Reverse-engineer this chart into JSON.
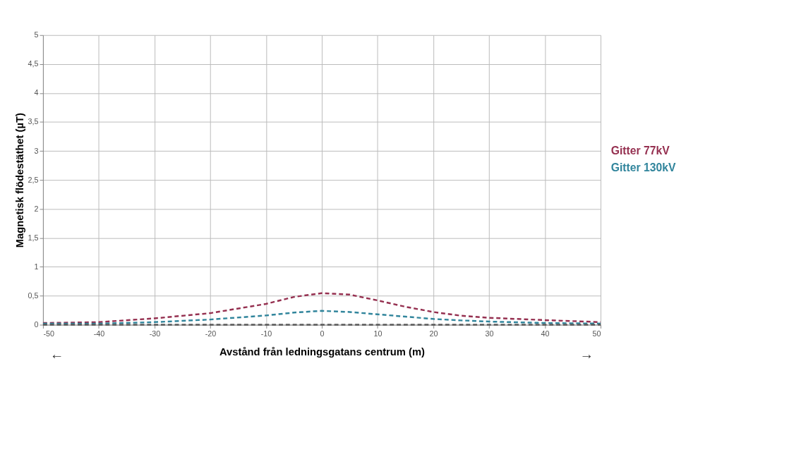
{
  "chart_data": {
    "type": "line",
    "xlabel": "Avstånd från ledningsgatans centrum (m)",
    "ylabel": "Magnetisk flödestäthet (µT)",
    "x": [
      -50,
      -40,
      -30,
      -20,
      -10,
      -5,
      0,
      5,
      10,
      15,
      20,
      25,
      30,
      40,
      50
    ],
    "series": [
      {
        "name": "Gitter 77kV",
        "color": "#953050",
        "values": [
          0.03,
          0.045,
          0.11,
          0.2,
          0.36,
          0.48,
          0.545,
          0.52,
          0.42,
          0.31,
          0.22,
          0.155,
          0.12,
          0.08,
          0.045
        ]
      },
      {
        "name": "Gitter 130kV",
        "color": "#31859c",
        "values": [
          0.02,
          0.02,
          0.045,
          0.09,
          0.16,
          0.21,
          0.24,
          0.22,
          0.18,
          0.14,
          0.1,
          0.075,
          0.055,
          0.03,
          0.02
        ]
      },
      {
        "color": "#595959",
        "values": [
          0,
          0,
          0,
          0,
          0,
          0,
          0,
          0,
          0,
          0,
          0,
          0,
          0,
          0,
          0
        ]
      }
    ],
    "xlim": [
      -50,
      50
    ],
    "xticks": [
      -50,
      -40,
      -30,
      -20,
      -10,
      0,
      10,
      20,
      30,
      40,
      50
    ],
    "ylim": [
      0,
      5
    ],
    "yticks": [
      0,
      {
        "value": 0.5,
        "label": "0,5"
      },
      1,
      {
        "value": 1.5,
        "label": "1,5"
      },
      2,
      {
        "value": 2.5,
        "label": "2,5"
      },
      3,
      {
        "value": 3.5,
        "label": "3,5"
      },
      4,
      {
        "value": 4.5,
        "label": "4,5"
      },
      5
    ],
    "annotations": [
      "←",
      "→"
    ],
    "grid": true,
    "legend": "right",
    "line_style": "dashed",
    "marker": "none"
  }
}
